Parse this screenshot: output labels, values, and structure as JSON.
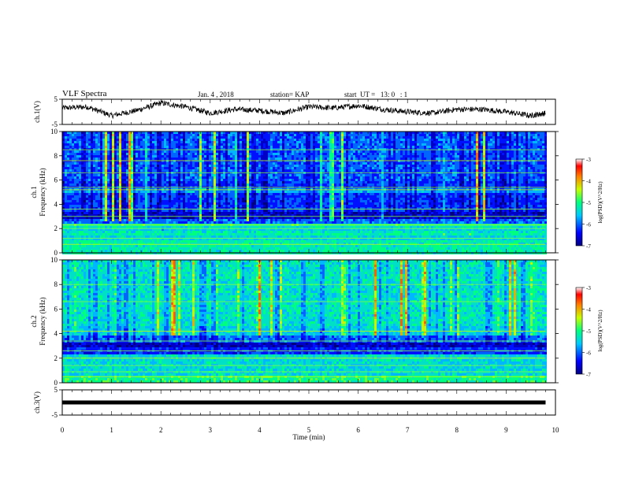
{
  "header": {
    "title": "VLF Spectra",
    "date": "Jan. 4 , 2018",
    "station": "station= KAP",
    "start": "start  UT =   13: 0   : 1"
  },
  "chart_data": [
    {
      "type": "line",
      "panel": "ch1-waveform",
      "ylabel": "ch.1(V)",
      "ylim": [
        -5,
        5
      ],
      "yticks": [
        "5",
        "-5"
      ],
      "xlim": [
        0,
        10
      ],
      "series": [
        {
          "x": [
            0,
            0.5,
            1,
            1.5,
            2,
            2.5,
            3,
            3.5,
            4,
            4.5,
            5,
            5.5,
            6,
            6.5,
            7,
            7.5,
            8,
            8.5,
            9,
            9.5,
            9.8
          ],
          "values": [
            1.5,
            2,
            -1.5,
            0.5,
            3.5,
            2,
            -0.5,
            1,
            0.5,
            -0.5,
            2,
            1.5,
            2.5,
            1,
            0,
            -0.5,
            1,
            1,
            0,
            -1.5,
            -0.5
          ]
        }
      ],
      "color": "#000000"
    },
    {
      "type": "heatmap",
      "panel": "ch1-spectrogram",
      "ylabel": "ch.1\nFrequency (kHz)",
      "ylim": [
        0,
        10
      ],
      "yticks": [
        "0",
        "2",
        "4",
        "6",
        "8",
        "10"
      ],
      "xlim": [
        0,
        10
      ],
      "colorbar": {
        "label": "log(PSD)(V^2/Hz)",
        "range": [
          -7,
          -3
        ],
        "ticks": [
          "-3",
          "-4",
          "-5",
          "-6",
          "-7"
        ]
      },
      "data_extent_min": 9.8
    },
    {
      "type": "heatmap",
      "panel": "ch2-spectrogram",
      "ylabel": "ch.2\nFrequency (kHz)",
      "ylim": [
        0,
        10
      ],
      "yticks": [
        "0",
        "2",
        "4",
        "6",
        "8",
        "10"
      ],
      "xlim": [
        0,
        10
      ],
      "colorbar": {
        "label": "log(PSD)(V^2/Hz)",
        "range": [
          -7,
          -3
        ],
        "ticks": [
          "-3",
          "-4",
          "-5",
          "-6",
          "-7"
        ]
      },
      "data_extent_min": 9.8
    },
    {
      "type": "line",
      "panel": "ch3-waveform",
      "ylabel": "ch.3(V)",
      "ylim": [
        -5,
        5
      ],
      "yticks": [
        "5",
        "-5"
      ],
      "xlim": [
        0,
        10
      ],
      "xlabel": "Time (min)",
      "xticks": [
        "0",
        "1",
        "2",
        "3",
        "4",
        "5",
        "6",
        "7",
        "8",
        "9",
        "10"
      ],
      "series": [
        {
          "x": [
            0,
            9.8
          ],
          "values": [
            0,
            0
          ]
        }
      ],
      "color": "#000000"
    }
  ]
}
